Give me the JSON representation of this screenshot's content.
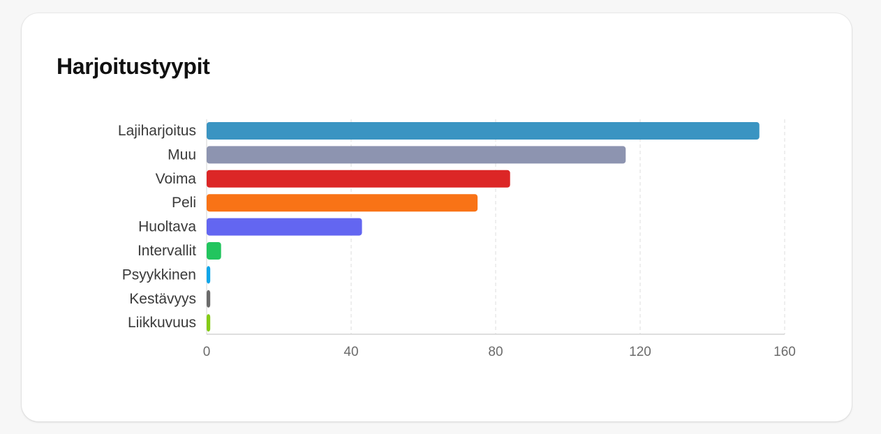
{
  "card": {
    "title": "Harjoitustyypit"
  },
  "chart_data": {
    "type": "bar",
    "orientation": "horizontal",
    "title": "Harjoitustyypit",
    "xlabel": "",
    "ylabel": "",
    "xlim": [
      0,
      160
    ],
    "xticks": [
      0,
      40,
      80,
      120,
      160
    ],
    "grid": true,
    "legend": "none",
    "categories": [
      "Lajiharjoitus",
      "Muu",
      "Voima",
      "Peli",
      "Huoltava",
      "Intervallit",
      "Psyykkinen",
      "Kestävyys",
      "Liikkuvuus"
    ],
    "values": [
      153,
      116,
      84,
      75,
      43,
      4,
      1,
      1,
      1
    ],
    "colors": [
      "#3a94c2",
      "#8d94b0",
      "#dc2626",
      "#f97316",
      "#6366f1",
      "#22c55e",
      "#0ea5e9",
      "#6b6b6b",
      "#84cc16"
    ]
  }
}
